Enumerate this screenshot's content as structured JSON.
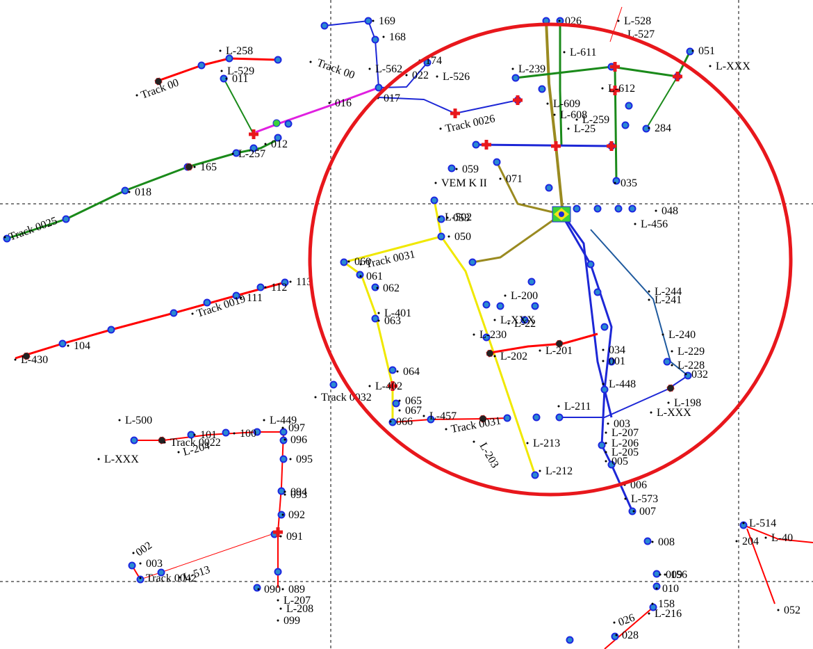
{
  "map": {
    "colors": {
      "background": "#ffffff",
      "circle": "#e8171c",
      "waypoint_fill": "#2a8ad1",
      "waypoint_ring": "#1d27e0",
      "marker_fill": "#3bd13b",
      "cross": "#e8171c",
      "track_red": "#ff0000",
      "track_green": "#1a8a1a",
      "track_blue": "#1d27d6",
      "track_yellow": "#f0e800",
      "track_olive": "#9a8a20",
      "track_magenta": "#e020e0",
      "track_steel": "#1f5a9e"
    },
    "icons": {
      "waypoint": "waypoint-icon",
      "track_point": "track-point-icon",
      "cross_marker": "red-cross-marker-icon",
      "flag": "brazil-flag-icon",
      "dot": "locality-dot-icon"
    },
    "tracks": [
      {
        "label": "Track 0025",
        "color": "#1a8a1a"
      },
      {
        "label": "Track 0026",
        "color": "#e020e0"
      },
      {
        "label": "Track 0031",
        "color": "#f0e800"
      },
      {
        "label": "Track 0032",
        "color": "#e8171c"
      },
      {
        "label": "Track 0022",
        "color": "#e8171c"
      },
      {
        "label": "Track 0019",
        "color": "#e8171c"
      },
      {
        "label": "Track 0042",
        "color": "#e8171c"
      }
    ],
    "labels": [
      "169",
      "168",
      "174",
      "L-526",
      "L-562",
      "022",
      "Track 00",
      "L-258",
      "L-529",
      "011",
      "Track 00",
      "016",
      "017",
      "Track 0026",
      "L-239",
      "026",
      "L-528",
      "L-527",
      "051",
      "L-611",
      "L-XXX",
      "L-612",
      "L-609",
      "L-608",
      "L-259",
      "L-25",
      "284",
      "035",
      "059",
      "VEM K II",
      "071",
      "165",
      "018",
      "Track 0025",
      "012",
      "L-257",
      "053",
      "050",
      "L-456",
      "060",
      "Track 0031",
      "061",
      "062",
      "L-401",
      "063",
      "064",
      "L-402",
      "Track 0032",
      "065",
      "067",
      "066",
      "L-457",
      "Track 0031",
      "L-203",
      "L-212",
      "L-213",
      "L-211",
      "L-244",
      "L-241",
      "L-240",
      "L-229",
      "L-228",
      "032",
      "L-198",
      "L-XXX",
      "034",
      "001",
      "L-448",
      "003",
      "L-207",
      "L-206",
      "L-205",
      "005",
      "006",
      "L-573",
      "007",
      "008",
      "009",
      "156",
      "010",
      "158",
      "L-216",
      "026",
      "028",
      "113",
      "112",
      "111",
      "Track 0019",
      "104",
      "L-430",
      "L-500",
      "L-449",
      "097",
      "096",
      "095",
      "094",
      "093",
      "092",
      "091",
      "090",
      "089",
      "L-207",
      "L-208",
      "099",
      "100",
      "101",
      "Track 0022",
      "L-204",
      "L-XXX",
      "002",
      "003",
      "Track 0042",
      "L-513",
      "L-514",
      "204",
      "L-40",
      "052",
      "L-502",
      "048",
      "L-230",
      "L-202",
      "L-201",
      "L-200",
      "L-XXX",
      "L-22"
    ]
  }
}
